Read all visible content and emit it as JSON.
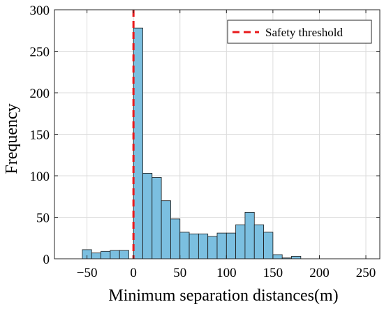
{
  "chart_data": {
    "type": "bar",
    "xlabel": "Minimum separation distances(m)",
    "ylabel": "Frequency",
    "xlim": [
      -85,
      265
    ],
    "ylim": [
      0,
      300
    ],
    "xticks": [
      -50,
      0,
      50,
      100,
      150,
      200,
      250
    ],
    "xtick_labels": [
      "−50",
      "0",
      "50",
      "100",
      "150",
      "200",
      "250"
    ],
    "yticks": [
      0,
      50,
      100,
      150,
      200,
      250,
      300
    ],
    "ytick_labels": [
      "0",
      "50",
      "100",
      "150",
      "200",
      "250",
      "300"
    ],
    "grid": true,
    "bin_width": 10,
    "bins": [
      {
        "x0": -55,
        "x1": -45,
        "count": 11
      },
      {
        "x0": -45,
        "x1": -35,
        "count": 7
      },
      {
        "x0": -35,
        "x1": -25,
        "count": 9
      },
      {
        "x0": -25,
        "x1": -15,
        "count": 10
      },
      {
        "x0": -15,
        "x1": -5,
        "count": 10
      },
      {
        "x0": 0,
        "x1": 10,
        "count": 278
      },
      {
        "x0": 10,
        "x1": 20,
        "count": 103
      },
      {
        "x0": 20,
        "x1": 30,
        "count": 98
      },
      {
        "x0": 30,
        "x1": 40,
        "count": 70
      },
      {
        "x0": 40,
        "x1": 50,
        "count": 48
      },
      {
        "x0": 50,
        "x1": 60,
        "count": 32
      },
      {
        "x0": 60,
        "x1": 70,
        "count": 30
      },
      {
        "x0": 70,
        "x1": 80,
        "count": 30
      },
      {
        "x0": 80,
        "x1": 90,
        "count": 27
      },
      {
        "x0": 90,
        "x1": 100,
        "count": 31
      },
      {
        "x0": 100,
        "x1": 110,
        "count": 31
      },
      {
        "x0": 110,
        "x1": 120,
        "count": 41
      },
      {
        "x0": 120,
        "x1": 130,
        "count": 56
      },
      {
        "x0": 130,
        "x1": 140,
        "count": 41
      },
      {
        "x0": 140,
        "x1": 150,
        "count": 32
      },
      {
        "x0": 150,
        "x1": 160,
        "count": 5
      },
      {
        "x0": 160,
        "x1": 170,
        "count": 1
      },
      {
        "x0": 170,
        "x1": 180,
        "count": 3
      }
    ],
    "bar_color": "#7bbfe0",
    "bar_edge_color": "#1a1a1a",
    "threshold": {
      "x": 0,
      "label": "Safety threshold",
      "color": "#e8191b",
      "style": "dashed"
    },
    "legend_position": "top-right"
  }
}
